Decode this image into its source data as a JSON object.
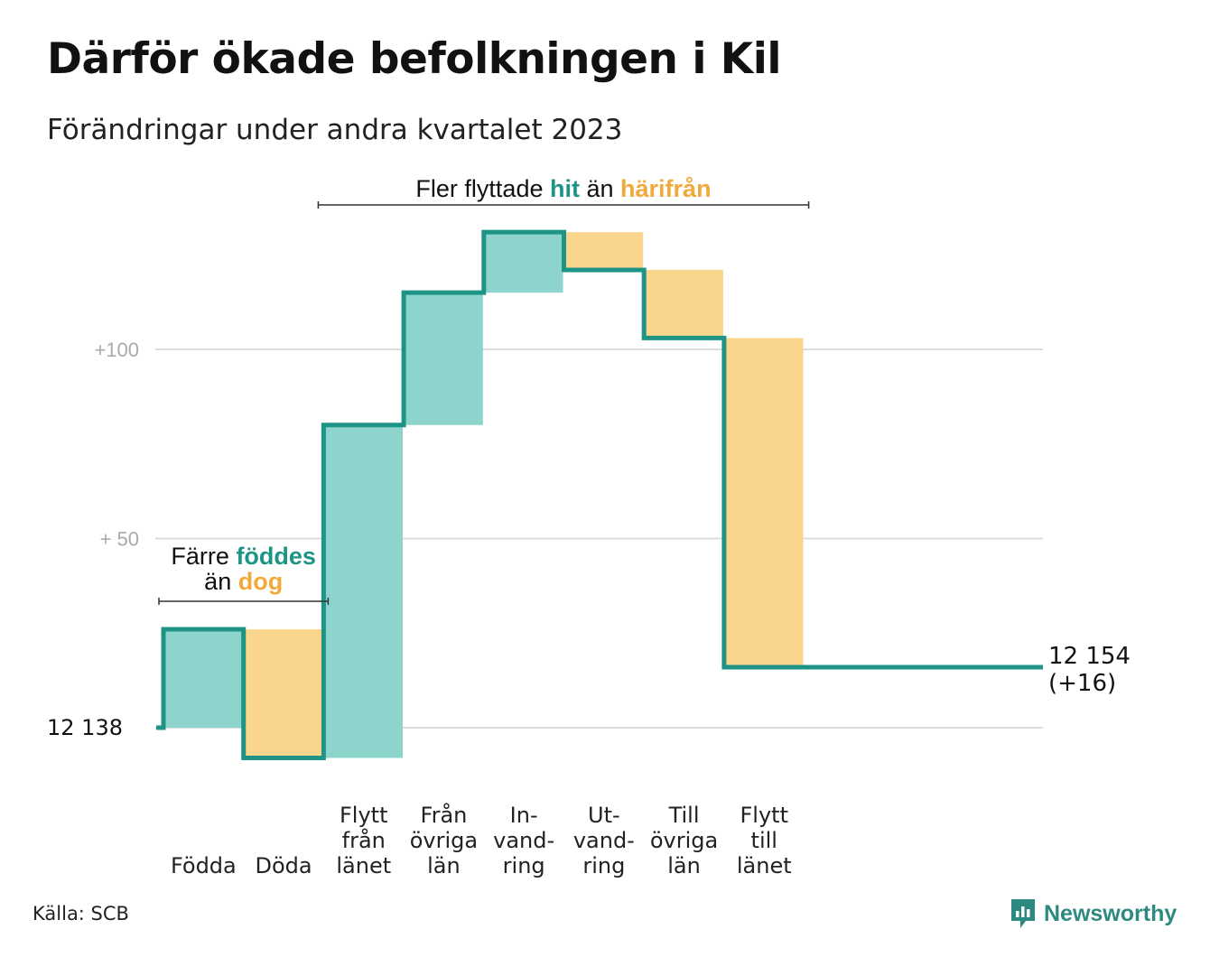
{
  "title": "Därför ökade befolkningen i Kil",
  "subtitle": "Förändringar under andra kvartalet 2023",
  "source": "Källa: SCB",
  "brand": "Newsworthy",
  "colors": {
    "increase": "#8dd5cc",
    "decrease": "#fad68c",
    "line": "#1e9486",
    "teal_text": "#1e9486",
    "orange_text": "#f2a93b",
    "grid": "#dddddd",
    "tick": "#aaaaaa"
  },
  "chart_data": {
    "type": "waterfall",
    "start_label": "12  138",
    "start_value": 12138,
    "end_label": [
      "12 154",
      "(+16)"
    ],
    "end_value": 12154,
    "yticks": [
      {
        "label": "+100",
        "offset": 100
      },
      {
        "label": "+  50",
        "offset": 50
      },
      {
        "label": "",
        "offset": 0
      }
    ],
    "steps": [
      {
        "label": [
          "Födda"
        ],
        "change": 26,
        "kind": "increase"
      },
      {
        "label": [
          "Döda"
        ],
        "change": -34,
        "kind": "decrease"
      },
      {
        "label": [
          "Flytt",
          "från",
          "länet"
        ],
        "change": 88,
        "kind": "increase"
      },
      {
        "label": [
          "Från",
          "övriga",
          "län"
        ],
        "change": 35,
        "kind": "increase"
      },
      {
        "label": [
          "In-",
          "vand-",
          "ring"
        ],
        "change": 16,
        "kind": "increase"
      },
      {
        "label": [
          "Ut-",
          "vand-",
          "ring"
        ],
        "change": -10,
        "kind": "decrease"
      },
      {
        "label": [
          "Till",
          "övriga",
          "län"
        ],
        "change": -18,
        "kind": "decrease"
      },
      {
        "label": [
          "Flytt",
          "till",
          "länet"
        ],
        "change": -87,
        "kind": "decrease"
      }
    ],
    "annotations": [
      {
        "parts": [
          {
            "text": "Färre ",
            "style": "plain"
          },
          {
            "text": "föddes",
            "style": "teal"
          }
        ],
        "line2": [
          {
            "text": "än ",
            "style": "plain"
          },
          {
            "text": "dog",
            "style": "orange"
          }
        ],
        "spans": [
          0,
          1
        ]
      },
      {
        "parts": [
          {
            "text": "Fler flyttade ",
            "style": "plain"
          },
          {
            "text": "hit",
            "style": "teal"
          },
          {
            "text": " än ",
            "style": "plain"
          },
          {
            "text": "härifrån",
            "style": "orange"
          }
        ],
        "spans": [
          2,
          7
        ]
      }
    ]
  }
}
